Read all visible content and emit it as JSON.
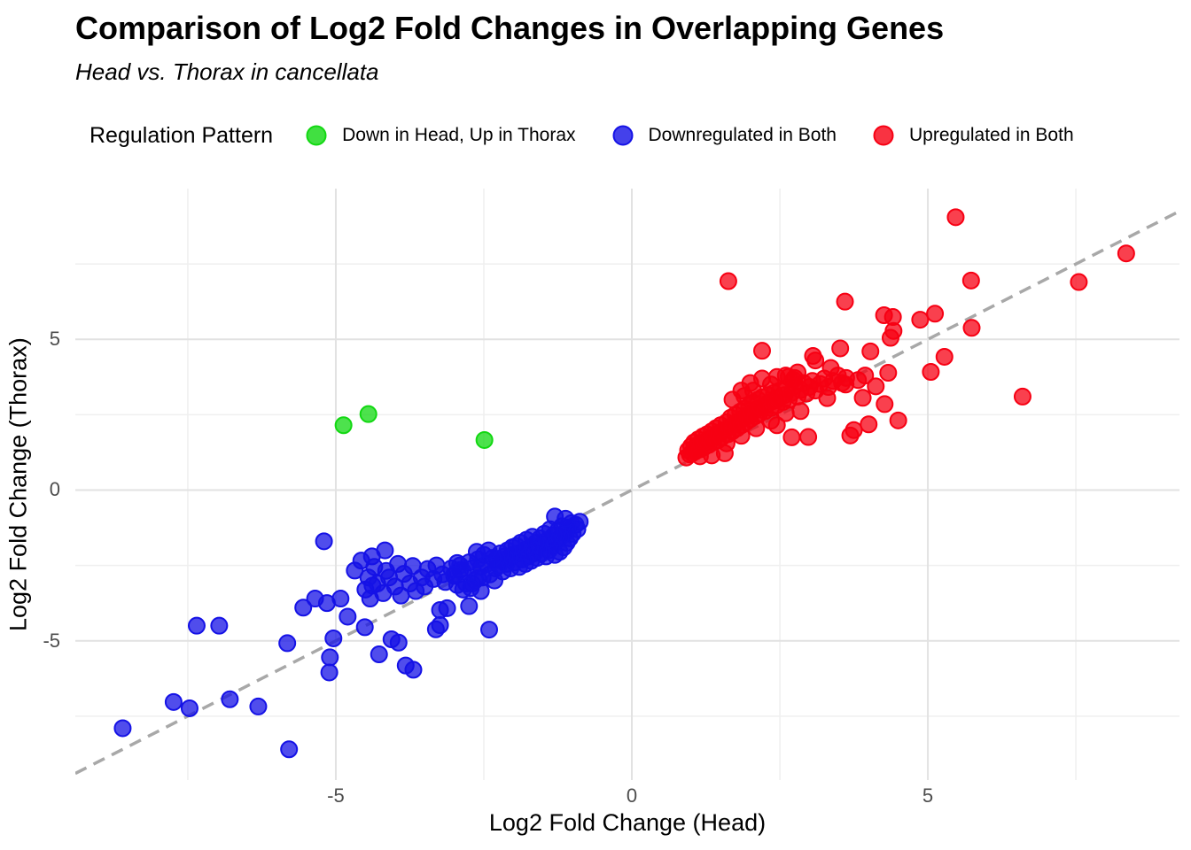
{
  "chart_data": {
    "type": "scatter",
    "title": "Comparison of Log2 Fold Changes in Overlapping Genes",
    "subtitle": "Head vs. Thorax in cancellata",
    "xlabel": "Log2 Fold Change (Head)",
    "ylabel": "Log2 Fold Change (Thorax)",
    "legend_title": "Regulation Pattern",
    "legend_position": "top",
    "grid": true,
    "xlim": [
      -9.4,
      9.25
    ],
    "ylim": [
      -9.62,
      10.0
    ],
    "xticks": {
      "values": [
        -5,
        0,
        5
      ],
      "labels": [
        "-5",
        "0",
        "5"
      ]
    },
    "yticks": {
      "values": [
        -5,
        0,
        5
      ],
      "labels": [
        "-5",
        "0",
        "5"
      ]
    },
    "x_minor": [
      -7.5,
      -2.5,
      2.5,
      7.5
    ],
    "y_minor": [
      -7.5,
      -2.5,
      2.5,
      7.5
    ],
    "identity_line": {
      "slope": 1,
      "intercept": 0,
      "style": "dashed",
      "color": "#a8a8a8"
    },
    "style": {
      "point_radius_px": 9,
      "fill_opacity": 0.75,
      "stroke_opacity": 1,
      "major_grid_color": "#e2e2e2",
      "minor_grid_color": "#efefef",
      "tick_label_color": "#4d4d4d"
    },
    "series": [
      {
        "name": "Down in Head, Up in Thorax",
        "color": "#12d812",
        "points": [
          [
            -4.87,
            2.15
          ],
          [
            -4.45,
            2.52
          ],
          [
            -2.49,
            1.66
          ]
        ]
      },
      {
        "name": "Downregulated in Both",
        "color": "#1512e6",
        "points": [
          [
            -8.6,
            -7.9
          ],
          [
            -7.74,
            -7.03
          ],
          [
            -7.47,
            -7.24
          ],
          [
            -6.79,
            -6.94
          ],
          [
            -6.31,
            -7.18
          ],
          [
            -5.79,
            -8.6
          ],
          [
            -7.35,
            -4.5
          ],
          [
            -6.97,
            -4.5
          ],
          [
            -5.82,
            -5.08
          ],
          [
            -5.1,
            -5.55
          ],
          [
            -5.11,
            -6.05
          ],
          [
            -4.27,
            -5.45
          ],
          [
            -3.82,
            -5.82
          ],
          [
            -3.69,
            -5.96
          ],
          [
            -4.06,
            -4.95
          ],
          [
            -3.94,
            -5.06
          ],
          [
            -2.41,
            -4.63
          ],
          [
            -5.55,
            -3.9
          ],
          [
            -5.35,
            -3.6
          ],
          [
            -5.15,
            -3.75
          ],
          [
            -4.92,
            -3.6
          ],
          [
            -4.8,
            -4.2
          ],
          [
            -4.51,
            -4.55
          ],
          [
            -3.31,
            -4.62
          ],
          [
            -3.24,
            -4.48
          ],
          [
            -2.75,
            -3.85
          ],
          [
            -3.24,
            -3.98
          ],
          [
            -3.12,
            -3.92
          ],
          [
            -5.04,
            -4.92
          ],
          [
            -5.2,
            -1.7
          ],
          [
            -4.57,
            -2.34
          ],
          [
            -4.39,
            -2.2
          ],
          [
            -4.17,
            -2.0
          ],
          [
            -4.68,
            -2.67
          ],
          [
            -4.38,
            -3.17
          ],
          [
            -4.5,
            -3.3
          ],
          [
            -4.42,
            -3.6
          ],
          [
            -4.3,
            -3.1
          ],
          [
            -4.2,
            -3.42
          ],
          [
            -4.1,
            -2.9
          ],
          [
            -4.0,
            -3.2
          ],
          [
            -3.9,
            -3.5
          ],
          [
            -3.85,
            -2.78
          ],
          [
            -3.75,
            -3.1
          ],
          [
            -3.65,
            -3.35
          ],
          [
            -3.55,
            -2.9
          ],
          [
            -3.5,
            -3.2
          ],
          [
            -3.45,
            -2.62
          ],
          [
            -3.35,
            -2.95
          ],
          [
            -3.3,
            -2.5
          ],
          [
            -3.2,
            -2.8
          ],
          [
            -3.15,
            -3.05
          ],
          [
            -3.05,
            -2.6
          ],
          [
            -3.0,
            -2.85
          ],
          [
            -2.95,
            -2.42
          ],
          [
            -2.9,
            -2.65
          ],
          [
            -4.35,
            -2.55
          ],
          [
            -4.15,
            -2.68
          ],
          [
            -3.95,
            -2.45
          ],
          [
            -3.7,
            -2.52
          ],
          [
            -4.45,
            -2.9
          ],
          [
            -2.85,
            -3.3
          ],
          [
            -2.7,
            -3.1
          ],
          [
            -2.6,
            -2.92
          ],
          [
            -2.55,
            -3.35
          ],
          [
            -0.88,
            -1.05
          ],
          [
            -0.92,
            -1.3
          ],
          [
            -0.95,
            -1.15
          ],
          [
            -1.0,
            -1.45
          ],
          [
            -1.02,
            -1.1
          ],
          [
            -1.05,
            -1.6
          ],
          [
            -1.08,
            -1.25
          ],
          [
            -1.1,
            -1.75
          ],
          [
            -1.12,
            -1.4
          ],
          [
            -1.15,
            -1.9
          ],
          [
            -1.18,
            -1.2
          ],
          [
            -1.2,
            -1.55
          ],
          [
            -1.22,
            -2.05
          ],
          [
            -1.25,
            -1.35
          ],
          [
            -1.28,
            -1.7
          ],
          [
            -1.3,
            -2.15
          ],
          [
            -1.32,
            -1.5
          ],
          [
            -1.35,
            -1.85
          ],
          [
            -1.38,
            -1.3
          ],
          [
            -1.4,
            -2.0
          ],
          [
            -1.42,
            -1.65
          ],
          [
            -1.45,
            -2.2
          ],
          [
            -1.48,
            -1.45
          ],
          [
            -1.5,
            -1.8
          ],
          [
            -1.52,
            -2.1
          ],
          [
            -1.55,
            -1.6
          ],
          [
            -1.58,
            -1.95
          ],
          [
            -1.6,
            -2.25
          ],
          [
            -1.3,
            -0.88
          ],
          [
            -1.12,
            -0.95
          ],
          [
            -1.62,
            -1.75
          ],
          [
            -1.65,
            -2.1
          ],
          [
            -1.68,
            -1.55
          ],
          [
            -1.7,
            -2.35
          ],
          [
            -1.72,
            -1.9
          ],
          [
            -1.75,
            -2.2
          ],
          [
            -1.78,
            -1.65
          ],
          [
            -1.8,
            -2.45
          ],
          [
            -1.82,
            -2.0
          ],
          [
            -1.85,
            -2.3
          ],
          [
            -1.88,
            -1.75
          ],
          [
            -1.9,
            -2.55
          ],
          [
            -1.92,
            -2.1
          ],
          [
            -1.95,
            -1.85
          ],
          [
            -1.98,
            -2.4
          ],
          [
            -2.0,
            -2.15
          ],
          [
            -2.02,
            -1.9
          ],
          [
            -2.05,
            -2.6
          ],
          [
            -2.08,
            -2.25
          ],
          [
            -2.1,
            -2.0
          ],
          [
            -2.12,
            -2.45
          ],
          [
            -2.15,
            -2.2
          ],
          [
            -2.18,
            -2.7
          ],
          [
            -2.2,
            -2.35
          ],
          [
            -2.22,
            -2.1
          ],
          [
            -2.25,
            -2.5
          ],
          [
            -2.28,
            -2.28
          ],
          [
            -2.3,
            -2.6
          ],
          [
            -2.35,
            -2.25
          ],
          [
            -2.4,
            -2.8
          ],
          [
            -2.45,
            -2.45
          ],
          [
            -2.5,
            -2.15
          ],
          [
            -2.52,
            -2.9
          ],
          [
            -2.55,
            -2.55
          ],
          [
            -2.6,
            -2.3
          ],
          [
            -2.65,
            -3.0
          ],
          [
            -2.7,
            -2.6
          ],
          [
            -2.75,
            -2.4
          ],
          [
            -2.8,
            -3.1
          ],
          [
            -2.85,
            -2.7
          ],
          [
            -2.9,
            -2.5
          ],
          [
            -2.95,
            -3.15
          ],
          [
            -3.0,
            -2.8
          ],
          [
            -2.42,
            -2.0
          ],
          [
            -2.62,
            -2.05
          ],
          [
            -2.32,
            -3.0
          ],
          [
            -2.72,
            -3.25
          ]
        ]
      },
      {
        "name": "Upregulated in Both",
        "color": "#f70013",
        "points": [
          [
            5.47,
            9.05
          ],
          [
            8.35,
            7.85
          ],
          [
            1.63,
            6.93
          ],
          [
            5.73,
            6.95
          ],
          [
            7.55,
            6.9
          ],
          [
            3.6,
            6.25
          ],
          [
            4.26,
            5.8
          ],
          [
            4.41,
            5.74
          ],
          [
            4.87,
            5.65
          ],
          [
            5.12,
            5.85
          ],
          [
            5.74,
            5.38
          ],
          [
            4.42,
            5.28
          ],
          [
            4.37,
            5.05
          ],
          [
            2.2,
            4.62
          ],
          [
            3.52,
            4.7
          ],
          [
            4.03,
            4.6
          ],
          [
            5.28,
            4.42
          ],
          [
            6.6,
            3.1
          ],
          [
            5.05,
            3.92
          ],
          [
            3.06,
            4.45
          ],
          [
            3.36,
            4.05
          ],
          [
            3.1,
            4.3
          ],
          [
            2.8,
            3.9
          ],
          [
            2.73,
            3.66
          ],
          [
            4.33,
            3.89
          ],
          [
            4.12,
            3.44
          ],
          [
            3.94,
            3.8
          ],
          [
            3.82,
            3.65
          ],
          [
            4.27,
            2.85
          ],
          [
            3.9,
            3.06
          ],
          [
            3.61,
            3.5
          ],
          [
            4.5,
            2.31
          ],
          [
            4.0,
            2.18
          ],
          [
            3.75,
            1.99
          ],
          [
            3.69,
            1.81
          ],
          [
            2.98,
            1.76
          ],
          [
            2.7,
            1.75
          ],
          [
            1.57,
            1.22
          ],
          [
            1.85,
            3.3
          ],
          [
            2.0,
            3.55
          ],
          [
            2.2,
            3.7
          ],
          [
            2.45,
            3.75
          ],
          [
            2.6,
            3.8
          ],
          [
            1.7,
            3.0
          ],
          [
            2.05,
            3.3
          ],
          [
            2.35,
            3.5
          ],
          [
            2.75,
            3.72
          ],
          [
            1.9,
            3.12
          ],
          [
            2.65,
            3.76
          ],
          [
            0.92,
            1.08
          ],
          [
            0.95,
            1.32
          ],
          [
            0.98,
            1.18
          ],
          [
            1.0,
            1.45
          ],
          [
            1.02,
            1.22
          ],
          [
            1.05,
            1.58
          ],
          [
            1.07,
            1.28
          ],
          [
            1.1,
            1.48
          ],
          [
            1.12,
            1.68
          ],
          [
            1.15,
            1.35
          ],
          [
            1.17,
            1.55
          ],
          [
            1.2,
            1.78
          ],
          [
            1.22,
            1.42
          ],
          [
            1.25,
            1.62
          ],
          [
            1.27,
            1.85
          ],
          [
            1.3,
            1.5
          ],
          [
            1.32,
            1.7
          ],
          [
            1.35,
            1.95
          ],
          [
            1.37,
            1.58
          ],
          [
            1.4,
            1.78
          ],
          [
            1.42,
            2.05
          ],
          [
            1.45,
            1.65
          ],
          [
            1.47,
            1.88
          ],
          [
            1.5,
            2.15
          ],
          [
            1.52,
            1.75
          ],
          [
            1.55,
            1.98
          ],
          [
            1.6,
            2.25
          ],
          [
            1.62,
            1.85
          ],
          [
            1.65,
            2.08
          ],
          [
            1.67,
            2.4
          ],
          [
            1.7,
            1.95
          ],
          [
            1.72,
            2.18
          ],
          [
            1.75,
            2.5
          ],
          [
            1.78,
            2.05
          ],
          [
            1.8,
            2.28
          ],
          [
            1.83,
            2.6
          ],
          [
            1.85,
            2.15
          ],
          [
            1.88,
            2.38
          ],
          [
            1.9,
            2.7
          ],
          [
            1.93,
            2.25
          ],
          [
            1.95,
            2.48
          ],
          [
            1.98,
            2.8
          ],
          [
            2.0,
            2.35
          ],
          [
            2.03,
            2.58
          ],
          [
            2.05,
            2.9
          ],
          [
            2.08,
            2.45
          ],
          [
            2.1,
            2.68
          ],
          [
            2.13,
            3.0
          ],
          [
            2.15,
            2.52
          ],
          [
            2.18,
            2.75
          ],
          [
            2.2,
            3.08
          ],
          [
            2.25,
            2.62
          ],
          [
            2.28,
            2.85
          ],
          [
            2.3,
            3.15
          ],
          [
            2.35,
            2.72
          ],
          [
            2.38,
            2.95
          ],
          [
            2.4,
            3.22
          ],
          [
            2.45,
            2.82
          ],
          [
            2.48,
            3.05
          ],
          [
            2.5,
            3.3
          ],
          [
            2.55,
            2.92
          ],
          [
            2.58,
            3.15
          ],
          [
            2.62,
            3.38
          ],
          [
            2.65,
            3.0
          ],
          [
            2.7,
            3.22
          ],
          [
            2.75,
            3.45
          ],
          [
            2.8,
            3.1
          ],
          [
            2.85,
            3.32
          ],
          [
            2.9,
            3.55
          ],
          [
            2.95,
            3.2
          ],
          [
            3.0,
            3.42
          ],
          [
            3.05,
            3.62
          ],
          [
            3.1,
            3.3
          ],
          [
            3.18,
            3.52
          ],
          [
            3.25,
            3.7
          ],
          [
            3.32,
            3.42
          ],
          [
            3.4,
            3.62
          ],
          [
            3.48,
            3.8
          ],
          [
            3.55,
            3.55
          ],
          [
            3.62,
            3.72
          ],
          [
            1.35,
            1.15
          ],
          [
            1.6,
            1.55
          ],
          [
            1.85,
            1.8
          ],
          [
            2.1,
            2.05
          ],
          [
            2.35,
            2.3
          ],
          [
            2.6,
            2.55
          ],
          [
            1.15,
            1.12
          ],
          [
            2.45,
            2.15
          ],
          [
            2.85,
            2.62
          ],
          [
            3.3,
            3.05
          ]
        ]
      }
    ]
  }
}
